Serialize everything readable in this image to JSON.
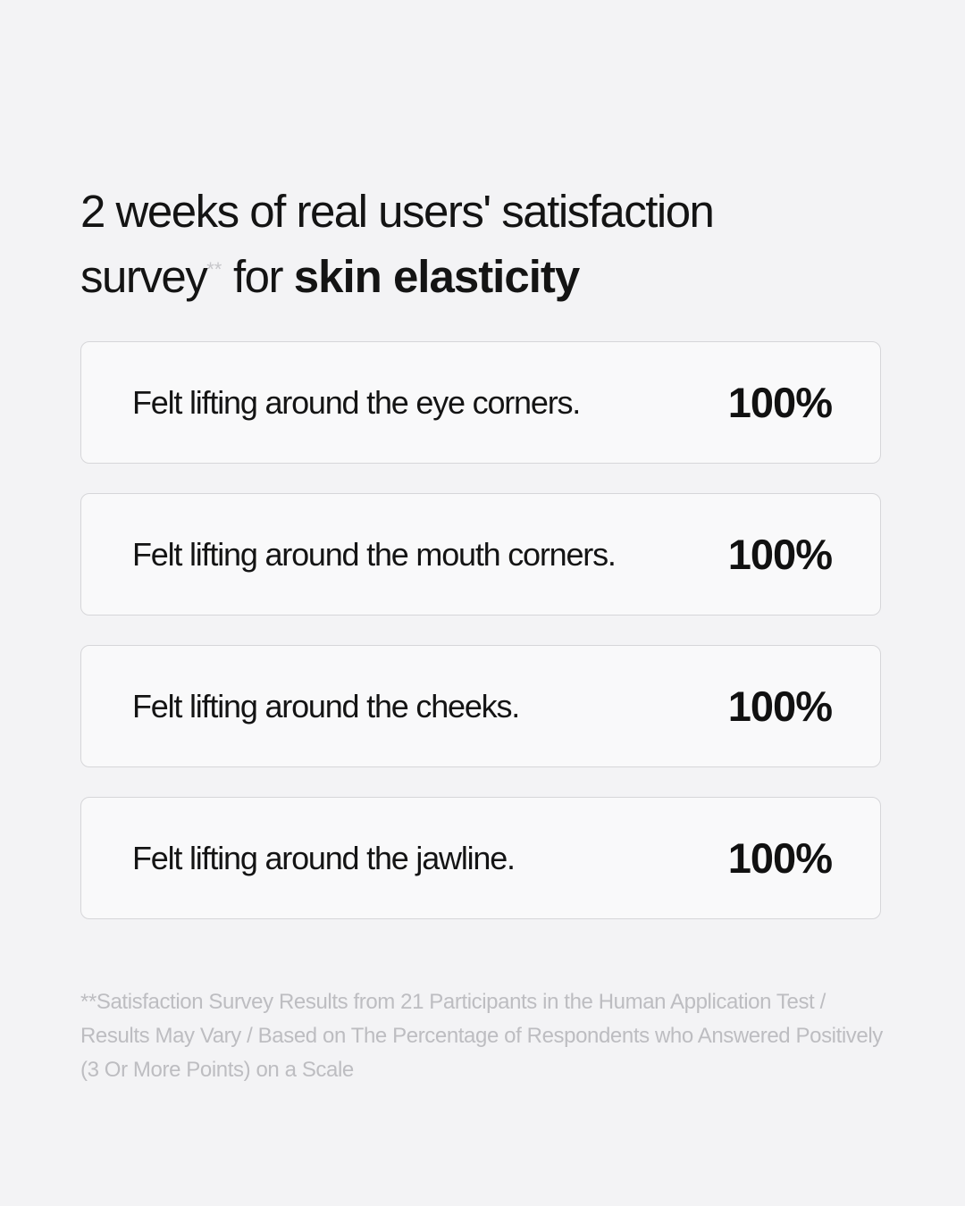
{
  "page": {
    "background_color": "#f3f3f5",
    "title_color": "#141414"
  },
  "title": {
    "line1": "2 weeks of real users' satisfaction",
    "line2_prefix": "survey",
    "superscript": "**",
    "line2_mid": "for",
    "line2_bold": "skin elasticity"
  },
  "cards": [
    {
      "label": "Felt lifting around the eye corners.",
      "value": "100%"
    },
    {
      "label": "Felt lifting around the mouth corners.",
      "value": "100%"
    },
    {
      "label": "Felt lifting around the cheeks.",
      "value": "100%"
    },
    {
      "label": "Felt lifting around the jawline.",
      "value": "100%"
    }
  ],
  "footnote": {
    "lines": [
      "**Satisfaction Survey Results from 21 Participants in the Human Application Test /",
      "Results May Vary / Based on The Percentage of Respondents who Answered Positively",
      "(3 Or More Points) on a Scale"
    ]
  },
  "colors": {
    "card_background": "#f9f9fa",
    "card_border": "#d6d6d9",
    "footnote_text": "#bdbdc1",
    "superscript_text": "#c6c6ca"
  },
  "chart_data": {
    "type": "table",
    "title": "2 weeks of real users' satisfaction survey** for skin elasticity",
    "categories": [
      "Felt lifting around the eye corners.",
      "Felt lifting around the mouth corners.",
      "Felt lifting around the cheeks.",
      "Felt lifting around the jawline."
    ],
    "values": [
      100,
      100,
      100,
      100
    ],
    "unit": "%",
    "participants": 21,
    "footnote": "**Satisfaction Survey Results from 21 Participants in the Human Application Test / Results May Vary / Based on The Percentage of Respondents who Answered Positively (3 Or More Points) on a Scale"
  }
}
